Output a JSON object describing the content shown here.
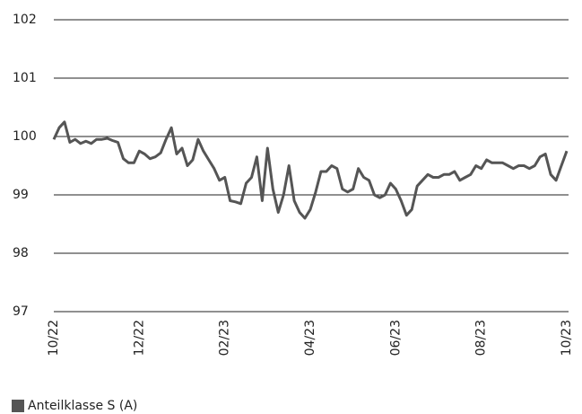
{
  "chart_data": {
    "type": "line",
    "categories": [
      "10/22",
      null,
      null,
      null,
      null,
      null,
      null,
      null,
      null,
      null,
      null,
      null,
      null,
      null,
      null,
      null,
      "12/22",
      null,
      null,
      null,
      null,
      null,
      null,
      null,
      null,
      null,
      null,
      null,
      null,
      null,
      null,
      null,
      "02/23",
      null,
      null,
      null,
      null,
      null,
      null,
      null,
      null,
      null,
      null,
      null,
      null,
      null,
      null,
      null,
      "04/23",
      null,
      null,
      null,
      null,
      null,
      null,
      null,
      null,
      null,
      null,
      null,
      null,
      null,
      null,
      null,
      "06/23",
      null,
      null,
      null,
      null,
      null,
      null,
      null,
      null,
      null,
      null,
      null,
      null,
      null,
      null,
      null,
      "08/23",
      null,
      null,
      null,
      null,
      null,
      null,
      null,
      null,
      null,
      null,
      null,
      null,
      null,
      null,
      null,
      "10/23"
    ],
    "series": [
      {
        "name": "Anteilklasse S (A)",
        "color": "#555555",
        "values": [
          99.95,
          100.15,
          100.25,
          99.9,
          99.95,
          99.88,
          99.92,
          99.88,
          99.95,
          99.95,
          99.97,
          99.93,
          99.9,
          99.62,
          99.55,
          99.55,
          99.75,
          99.7,
          99.62,
          99.65,
          99.72,
          99.95,
          100.15,
          99.7,
          99.8,
          99.5,
          99.6,
          99.95,
          99.75,
          99.6,
          99.45,
          99.25,
          99.3,
          98.9,
          98.88,
          98.85,
          99.2,
          99.3,
          99.65,
          98.9,
          99.8,
          99.1,
          98.7,
          99.0,
          99.5,
          98.9,
          98.7,
          98.6,
          98.75,
          99.05,
          99.4,
          99.4,
          99.5,
          99.45,
          99.1,
          99.05,
          99.1,
          99.45,
          99.3,
          99.25,
          99.0,
          98.95,
          99.0,
          99.2,
          99.1,
          98.9,
          98.65,
          98.75,
          99.15,
          99.25,
          99.35,
          99.3,
          99.3,
          99.35,
          99.35,
          99.4,
          99.25,
          99.3,
          99.35,
          99.5,
          99.45,
          99.6,
          99.55,
          99.55,
          99.55,
          99.5,
          99.45,
          99.5,
          99.5,
          99.45,
          99.5,
          99.65,
          99.7,
          99.35,
          99.25,
          99.5,
          99.75
        ]
      }
    ],
    "ylim": [
      97,
      102
    ],
    "yticks": [
      97,
      98,
      99,
      100,
      101,
      102
    ],
    "grid": true,
    "legend": "bottom-left"
  }
}
